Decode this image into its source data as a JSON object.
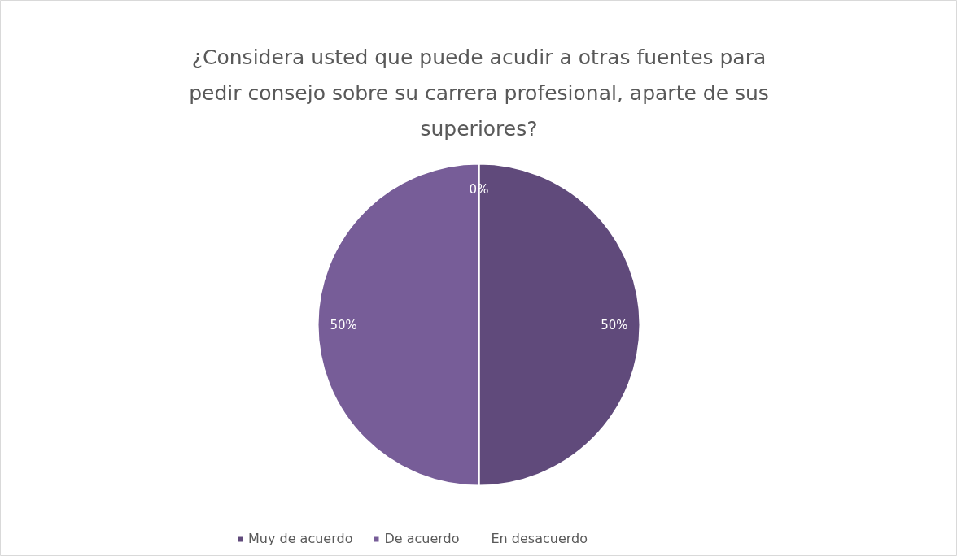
{
  "chart_data": {
    "type": "pie",
    "title": "¿Considera usted que puede acudir a otras fuentes para pedir consejo sobre su carrera profesional, aparte de sus superiores?",
    "categories": [
      "Muy de acuerdo",
      "De acuerdo",
      "En desacuerdo",
      null
    ],
    "values": [
      50,
      50,
      0,
      0
    ],
    "colors": [
      "#604a7b",
      "#775d98",
      "#8c79a8",
      "#c9bcdb"
    ],
    "value_labels": [
      "50%",
      "50%",
      "0%",
      null
    ],
    "legend": "bottom"
  }
}
